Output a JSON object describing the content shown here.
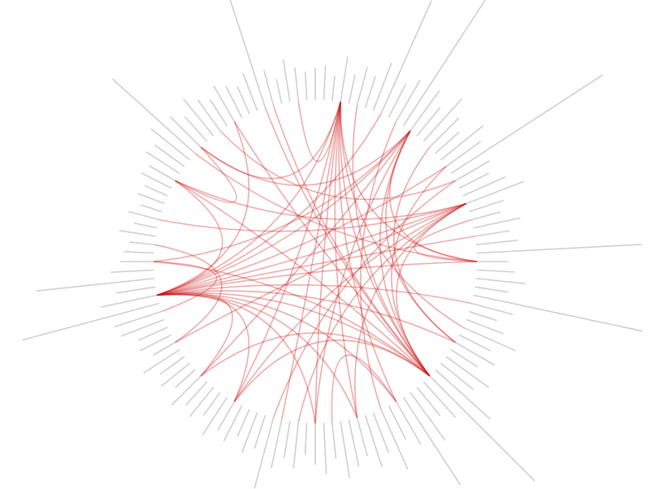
{
  "chart_data": {
    "type": "radial-bundle",
    "bar_color": "#cfcfcf",
    "link_color": "#cc1111",
    "values": [
      38,
      42,
      30,
      55,
      35,
      48,
      40,
      62,
      152,
      45,
      58,
      185,
      60,
      44,
      70,
      50,
      38,
      66,
      52,
      222,
      48,
      40,
      56,
      75,
      44,
      36,
      58,
      42,
      50,
      202,
      38,
      46,
      60,
      40,
      212,
      52,
      35,
      48,
      70,
      42,
      55,
      38,
      64,
      50,
      90,
      182,
      58,
      44,
      72,
      128,
      60,
      46,
      80,
      52,
      66,
      48,
      58,
      70,
      44,
      62,
      50,
      38,
      56,
      45,
      60,
      89,
      42,
      52,
      36,
      48,
      40,
      55,
      34,
      46,
      38,
      50,
      32,
      44,
      36,
      52,
      30,
      42,
      38,
      56,
      60,
      173,
      70,
      48,
      145,
      52,
      40,
      36,
      30,
      44,
      28,
      38,
      26,
      34,
      30,
      40,
      36,
      48,
      44,
      60,
      136,
      52,
      40,
      58,
      46,
      38,
      50,
      42,
      36,
      48,
      141,
      44,
      30,
      52,
      40,
      34
    ],
    "links": [
      [
        86,
        3
      ],
      [
        86,
        12
      ],
      [
        86,
        23
      ],
      [
        86,
        45
      ],
      [
        86,
        30
      ],
      [
        86,
        50
      ],
      [
        86,
        60
      ],
      [
        86,
        8
      ],
      [
        86,
        18
      ],
      [
        86,
        40
      ],
      [
        86,
        100
      ],
      [
        86,
        110
      ],
      [
        86,
        27
      ],
      [
        86,
        35
      ],
      [
        3,
        45
      ],
      [
        3,
        50
      ],
      [
        3,
        55
      ],
      [
        3,
        60
      ],
      [
        3,
        38
      ],
      [
        3,
        30
      ],
      [
        3,
        70
      ],
      [
        3,
        64
      ],
      [
        12,
        45
      ],
      [
        12,
        40
      ],
      [
        12,
        30
      ],
      [
        12,
        60
      ],
      [
        12,
        75
      ],
      [
        23,
        45
      ],
      [
        23,
        80
      ],
      [
        23,
        95
      ],
      [
        23,
        70
      ],
      [
        23,
        100
      ],
      [
        45,
        110
      ],
      [
        45,
        115
      ],
      [
        45,
        100
      ],
      [
        45,
        70
      ],
      [
        45,
        90
      ],
      [
        45,
        75
      ],
      [
        45,
        5
      ],
      [
        45,
        18
      ],
      [
        86,
        75
      ],
      [
        86,
        70
      ],
      [
        86,
        55
      ],
      [
        12,
        90
      ],
      [
        12,
        105
      ],
      [
        3,
        105
      ],
      [
        23,
        55
      ],
      [
        23,
        62
      ],
      [
        104,
        30
      ],
      [
        114,
        45
      ],
      [
        10,
        52
      ],
      [
        20,
        65
      ],
      [
        15,
        40
      ],
      [
        80,
        92
      ],
      [
        84,
        90
      ],
      [
        100,
        105
      ],
      [
        25,
        30
      ],
      [
        50,
        58
      ],
      [
        118,
        3
      ],
      [
        108,
        20
      ]
    ]
  }
}
